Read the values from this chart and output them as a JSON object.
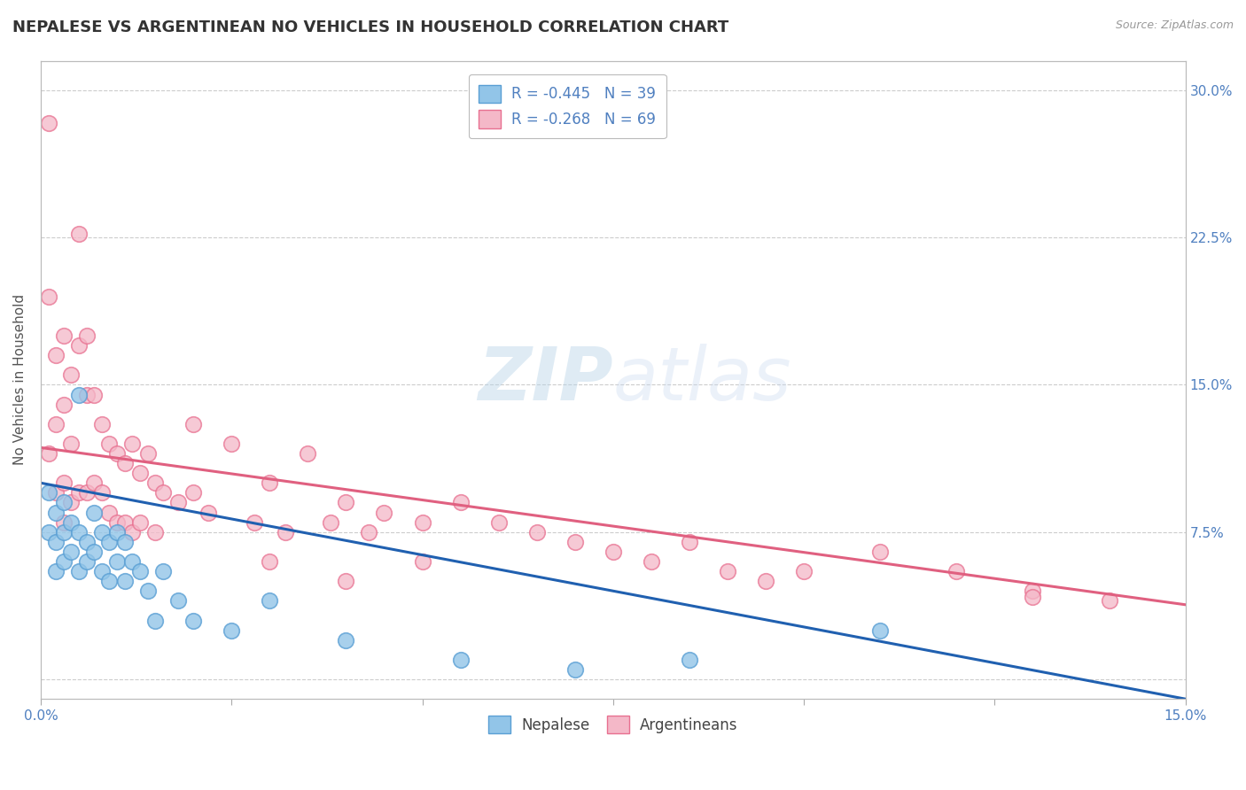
{
  "title": "NEPALESE VS ARGENTINEAN NO VEHICLES IN HOUSEHOLD CORRELATION CHART",
  "source": "Source: ZipAtlas.com",
  "ylabel": "No Vehicles in Household",
  "yticks": [
    0.0,
    0.075,
    0.15,
    0.225,
    0.3
  ],
  "ytick_labels": [
    "",
    "7.5%",
    "15.0%",
    "22.5%",
    "30.0%"
  ],
  "xmin": 0.0,
  "xmax": 0.15,
  "ymin": -0.01,
  "ymax": 0.315,
  "nepalese_color": "#92c5e8",
  "nepalese_edge_color": "#5a9fd4",
  "argentinean_color": "#f4b8c8",
  "argentinean_edge_color": "#e87090",
  "nepalese_line_color": "#2060b0",
  "argentinean_line_color": "#e06080",
  "watermark_color": "#c8dff0",
  "background_color": "#ffffff",
  "grid_color": "#cccccc",
  "title_fontsize": 13,
  "axis_label_fontsize": 11,
  "tick_fontsize": 11,
  "R_nepalese": -0.445,
  "N_nepalese": 39,
  "R_argentinean": -0.268,
  "N_argentinean": 69,
  "nep_line_x0": 0.0,
  "nep_line_y0": 0.1,
  "nep_line_x1": 0.15,
  "nep_line_y1": -0.01,
  "arg_line_x0": 0.0,
  "arg_line_y0": 0.118,
  "arg_line_x1": 0.15,
  "arg_line_y1": 0.038,
  "nep_x": [
    0.001,
    0.001,
    0.002,
    0.002,
    0.002,
    0.003,
    0.003,
    0.003,
    0.004,
    0.004,
    0.005,
    0.005,
    0.005,
    0.006,
    0.006,
    0.007,
    0.007,
    0.008,
    0.008,
    0.009,
    0.009,
    0.01,
    0.01,
    0.011,
    0.011,
    0.012,
    0.013,
    0.014,
    0.015,
    0.016,
    0.018,
    0.02,
    0.025,
    0.03,
    0.04,
    0.055,
    0.07,
    0.085,
    0.11
  ],
  "nep_y": [
    0.095,
    0.075,
    0.085,
    0.07,
    0.055,
    0.09,
    0.075,
    0.06,
    0.08,
    0.065,
    0.145,
    0.075,
    0.055,
    0.07,
    0.06,
    0.085,
    0.065,
    0.075,
    0.055,
    0.07,
    0.05,
    0.075,
    0.06,
    0.07,
    0.05,
    0.06,
    0.055,
    0.045,
    0.03,
    0.055,
    0.04,
    0.03,
    0.025,
    0.04,
    0.02,
    0.01,
    0.005,
    0.01,
    0.025
  ],
  "arg_x": [
    0.001,
    0.001,
    0.001,
    0.002,
    0.002,
    0.002,
    0.003,
    0.003,
    0.003,
    0.003,
    0.004,
    0.004,
    0.004,
    0.005,
    0.005,
    0.006,
    0.006,
    0.006,
    0.007,
    0.007,
    0.008,
    0.008,
    0.009,
    0.009,
    0.01,
    0.01,
    0.011,
    0.011,
    0.012,
    0.012,
    0.013,
    0.013,
    0.014,
    0.015,
    0.015,
    0.016,
    0.018,
    0.02,
    0.022,
    0.025,
    0.028,
    0.03,
    0.032,
    0.035,
    0.038,
    0.04,
    0.043,
    0.045,
    0.05,
    0.055,
    0.06,
    0.065,
    0.07,
    0.075,
    0.08,
    0.085,
    0.09,
    0.095,
    0.1,
    0.11,
    0.12,
    0.13,
    0.14,
    0.005,
    0.02,
    0.03,
    0.04,
    0.05,
    0.13
  ],
  "arg_y": [
    0.283,
    0.195,
    0.115,
    0.165,
    0.13,
    0.095,
    0.175,
    0.14,
    0.1,
    0.08,
    0.155,
    0.12,
    0.09,
    0.17,
    0.095,
    0.175,
    0.145,
    0.095,
    0.145,
    0.1,
    0.13,
    0.095,
    0.12,
    0.085,
    0.115,
    0.08,
    0.11,
    0.08,
    0.12,
    0.075,
    0.105,
    0.08,
    0.115,
    0.1,
    0.075,
    0.095,
    0.09,
    0.13,
    0.085,
    0.12,
    0.08,
    0.1,
    0.075,
    0.115,
    0.08,
    0.09,
    0.075,
    0.085,
    0.08,
    0.09,
    0.08,
    0.075,
    0.07,
    0.065,
    0.06,
    0.07,
    0.055,
    0.05,
    0.055,
    0.065,
    0.055,
    0.045,
    0.04,
    0.227,
    0.095,
    0.06,
    0.05,
    0.06,
    0.042
  ]
}
